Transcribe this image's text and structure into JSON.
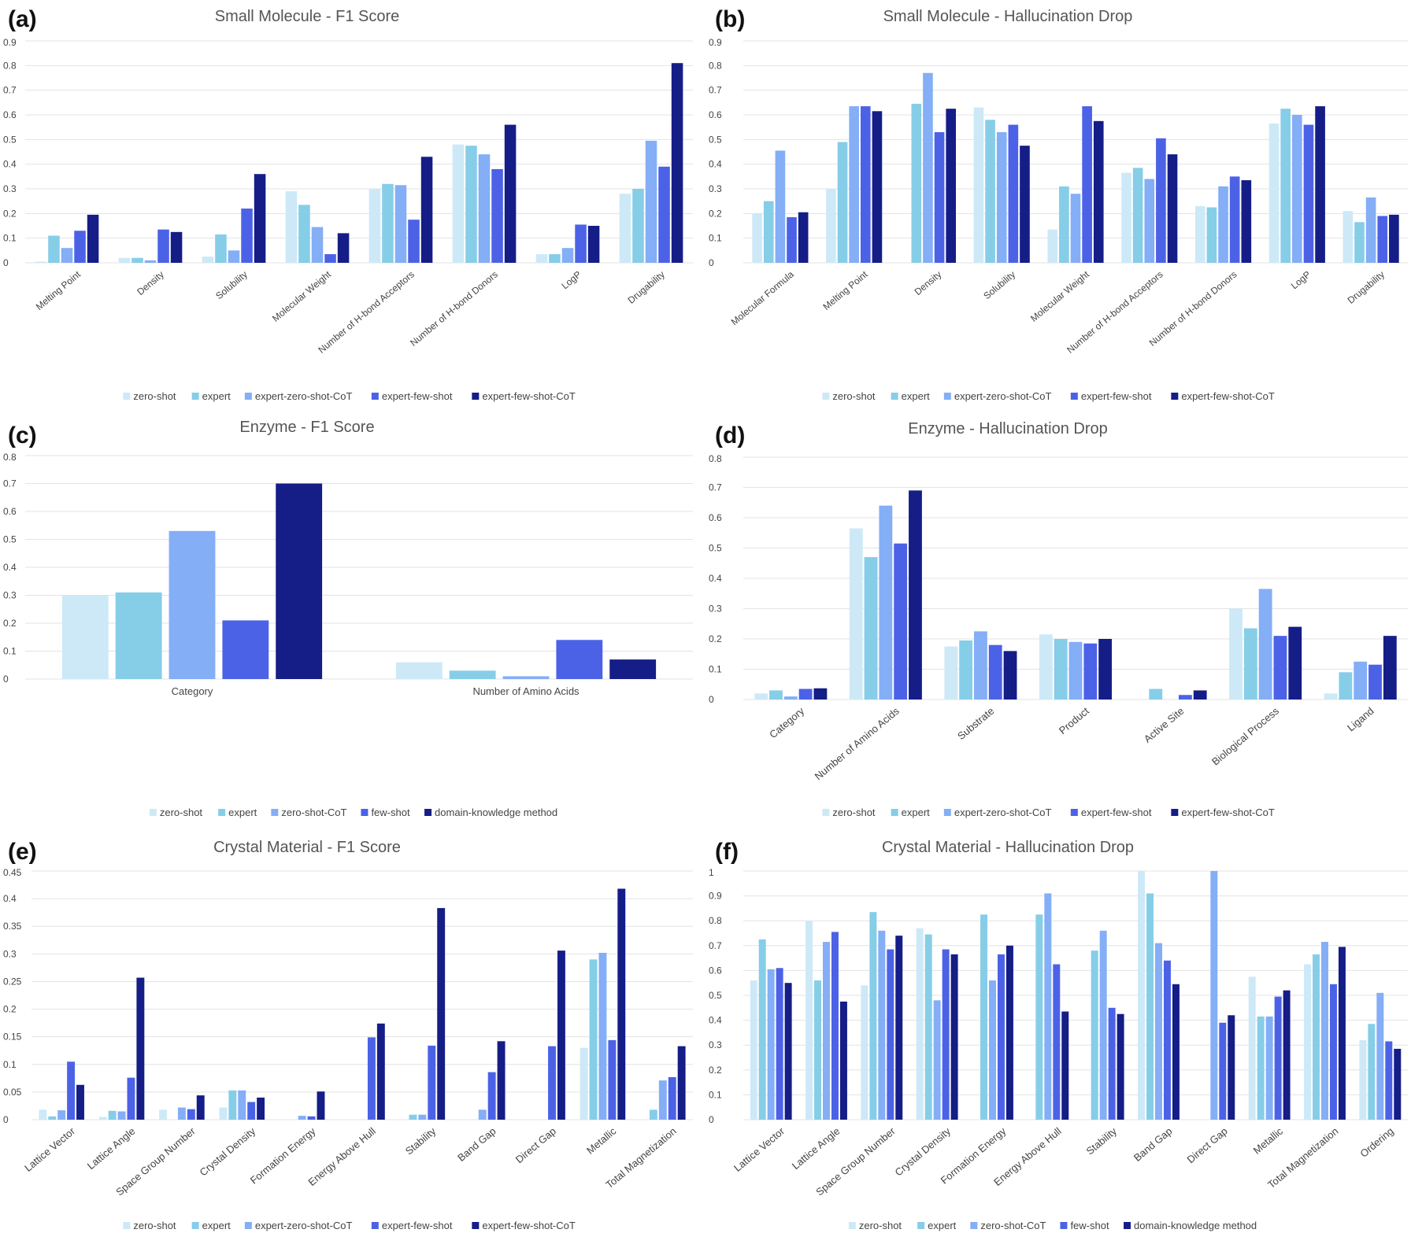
{
  "colors": {
    "s1": "#cde9f7",
    "s2": "#86cde8",
    "s3": "#84aef6",
    "s4": "#4c62e6",
    "s5": "#151d87"
  },
  "chart_data": [
    {
      "type": "bar",
      "panel_label": "(a)",
      "title": "Small Molecule - F1 Score",
      "categories": [
        "Melting Point",
        "Density",
        "Solubility",
        "Molecular Weight",
        "Number of H-bond Acceptors",
        "Number of H-bond Donors",
        "LogP",
        "Drugability"
      ],
      "ylim": [
        0,
        0.9
      ],
      "yticks": [
        "0",
        "0.1",
        "0.2",
        "0.3",
        "0.4",
        "0.5",
        "0.6",
        "0.7",
        "0.8",
        "0.9"
      ],
      "rotate_labels": true,
      "legend": "bottom",
      "series": [
        {
          "name": "zero-shot",
          "values": [
            0.005,
            0.02,
            0.025,
            0.29,
            0.3,
            0.48,
            0.035,
            0.28
          ]
        },
        {
          "name": "expert",
          "values": [
            0.11,
            0.02,
            0.115,
            0.235,
            0.32,
            0.475,
            0.035,
            0.3
          ]
        },
        {
          "name": "expert-zero-shot-CoT",
          "values": [
            0.06,
            0.01,
            0.05,
            0.145,
            0.315,
            0.44,
            0.06,
            0.495
          ]
        },
        {
          "name": "expert-few-shot",
          "values": [
            0.13,
            0.135,
            0.22,
            0.035,
            0.175,
            0.38,
            0.155,
            0.39
          ]
        },
        {
          "name": "expert-few-shot-CoT",
          "values": [
            0.195,
            0.125,
            0.36,
            0.12,
            0.43,
            0.56,
            0.15,
            0.81
          ]
        }
      ]
    },
    {
      "type": "bar",
      "panel_label": "(b)",
      "title": "Small Molecule - Hallucination Drop",
      "categories": [
        "Molecular Formula",
        "Melting Point",
        "Density",
        "Solubility",
        "Molecular Weight",
        "Number of H-bond Acceptors",
        "Number of H-bond Donors",
        "LogP",
        "Drugability"
      ],
      "ylim": [
        0,
        0.9
      ],
      "yticks": [
        "0",
        "0.1",
        "0.2",
        "0.3",
        "0.4",
        "0.5",
        "0.6",
        "0.7",
        "0.8",
        "0.9"
      ],
      "rotate_labels": true,
      "legend": "bottom",
      "series": [
        {
          "name": "zero-shot",
          "values": [
            0.2,
            0.3,
            0.0,
            0.63,
            0.135,
            0.365,
            0.23,
            0.565,
            0.21
          ]
        },
        {
          "name": "expert",
          "values": [
            0.25,
            0.49,
            0.645,
            0.58,
            0.31,
            0.385,
            0.225,
            0.625,
            0.165
          ]
        },
        {
          "name": "expert-zero-shot-CoT",
          "values": [
            0.455,
            0.635,
            0.77,
            0.53,
            0.28,
            0.34,
            0.31,
            0.6,
            0.265
          ]
        },
        {
          "name": "expert-few-shot",
          "values": [
            0.185,
            0.635,
            0.53,
            0.56,
            0.635,
            0.505,
            0.35,
            0.56,
            0.19
          ]
        },
        {
          "name": "expert-few-shot-CoT",
          "values": [
            0.205,
            0.615,
            0.625,
            0.475,
            0.575,
            0.44,
            0.335,
            0.635,
            0.195
          ]
        }
      ]
    },
    {
      "type": "bar",
      "panel_label": "(c)",
      "title": "Enzyme - F1 Score",
      "categories": [
        "Category",
        "Number of Amino Acids"
      ],
      "ylim": [
        0,
        0.8
      ],
      "yticks": [
        "0",
        "0.1",
        "0.2",
        "0.3",
        "0.4",
        "0.5",
        "0.6",
        "0.7",
        "0.8"
      ],
      "rotate_labels": false,
      "legend": "bottom",
      "series": [
        {
          "name": "zero-shot",
          "values": [
            0.3,
            0.06
          ]
        },
        {
          "name": "expert",
          "values": [
            0.31,
            0.03
          ]
        },
        {
          "name": "zero-shot-CoT",
          "values": [
            0.53,
            0.01
          ]
        },
        {
          "name": "few-shot",
          "values": [
            0.21,
            0.14
          ]
        },
        {
          "name": "domain-knowledge method",
          "values": [
            0.7,
            0.07
          ]
        }
      ]
    },
    {
      "type": "bar",
      "panel_label": "(d)",
      "title": "Enzyme - Hallucination Drop",
      "categories": [
        "Category",
        "Number of Amino Acids",
        "Substrate",
        "Product",
        "Active Site",
        "Biological Process",
        "Ligand"
      ],
      "ylim": [
        0,
        0.8
      ],
      "yticks": [
        "0",
        "0.1",
        "0.2",
        "0.3",
        "0.4",
        "0.5",
        "0.6",
        "0.7",
        "0.8"
      ],
      "rotate_labels": true,
      "legend": "bottom",
      "series": [
        {
          "name": "zero-shot",
          "values": [
            0.02,
            0.565,
            0.175,
            0.215,
            0.0,
            0.3,
            0.02
          ]
        },
        {
          "name": "expert",
          "values": [
            0.03,
            0.47,
            0.195,
            0.2,
            0.035,
            0.235,
            0.09
          ]
        },
        {
          "name": "expert-zero-shot-CoT",
          "values": [
            0.01,
            0.64,
            0.225,
            0.19,
            0.0,
            0.365,
            0.125
          ]
        },
        {
          "name": "expert-few-shot",
          "values": [
            0.035,
            0.515,
            0.18,
            0.185,
            0.015,
            0.21,
            0.115
          ]
        },
        {
          "name": "expert-few-shot-CoT",
          "values": [
            0.037,
            0.69,
            0.16,
            0.2,
            0.03,
            0.24,
            0.21
          ]
        }
      ]
    },
    {
      "type": "bar",
      "panel_label": "(e)",
      "title": "Crystal Material - F1 Score",
      "categories": [
        "Lattice Vector",
        "Lattice Angle",
        "Space Group Number",
        "Crystal Density",
        "Formation Energy",
        "Energy Above Hull",
        "Stability",
        "Band Gap",
        "Direct Gap",
        "Metallic",
        "Total Magnetization"
      ],
      "ylim": [
        0,
        0.45
      ],
      "yticks": [
        "0",
        "0.05",
        "0.1",
        "0.15",
        "0.2",
        "0.25",
        "0.3",
        "0.35",
        "0.4",
        "0.45"
      ],
      "rotate_labels": true,
      "legend": "bottom",
      "series": [
        {
          "name": "zero-shot",
          "values": [
            0.018,
            0.005,
            0.018,
            0.022,
            0.0,
            0.0,
            0.0,
            0.0,
            0.0,
            0.13,
            0.0
          ]
        },
        {
          "name": "expert",
          "values": [
            0.006,
            0.016,
            0.0,
            0.053,
            0.0,
            0.0,
            0.009,
            0.0,
            0.0,
            0.29,
            0.018
          ]
        },
        {
          "name": "expert-zero-shot-CoT",
          "values": [
            0.017,
            0.015,
            0.022,
            0.053,
            0.007,
            0.0,
            0.009,
            0.018,
            0.0,
            0.302,
            0.071
          ]
        },
        {
          "name": "expert-few-shot",
          "values": [
            0.105,
            0.076,
            0.019,
            0.032,
            0.006,
            0.149,
            0.134,
            0.086,
            0.133,
            0.144,
            0.077
          ]
        },
        {
          "name": "expert-few-shot-CoT",
          "values": [
            0.063,
            0.257,
            0.044,
            0.04,
            0.051,
            0.174,
            0.383,
            0.142,
            0.306,
            0.418,
            0.133
          ]
        }
      ]
    },
    {
      "type": "bar",
      "panel_label": "(f)",
      "title": "Crystal Material - Hallucination Drop",
      "categories": [
        "Lattice Vector",
        "Lattice Angle",
        "Space Group Number",
        "Crystal Density",
        "Formation Energy",
        "Energy Above Hull",
        "Stability",
        "Band Gap",
        "Direct Gap",
        "Metallic",
        "Total Magnetization",
        "Ordering"
      ],
      "ylim": [
        0,
        1
      ],
      "yticks": [
        "0",
        "0.1",
        "0.2",
        "0.3",
        "0.4",
        "0.5",
        "0.6",
        "0.7",
        "0.8",
        "0.9",
        "1"
      ],
      "rotate_labels": true,
      "legend": "bottom",
      "series": [
        {
          "name": "zero-shot",
          "values": [
            0.56,
            0.8,
            0.54,
            0.77,
            0.0,
            0.0,
            0.0,
            1.0,
            0.0,
            0.575,
            0.625,
            0.32
          ]
        },
        {
          "name": "expert",
          "values": [
            0.725,
            0.56,
            0.835,
            0.745,
            0.825,
            0.825,
            0.68,
            0.91,
            0.0,
            0.415,
            0.665,
            0.385
          ]
        },
        {
          "name": "zero-shot-CoT",
          "values": [
            0.605,
            0.715,
            0.76,
            0.48,
            0.56,
            0.91,
            0.76,
            0.71,
            1.0,
            0.415,
            0.715,
            0.51
          ]
        },
        {
          "name": "few-shot",
          "values": [
            0.61,
            0.755,
            0.685,
            0.685,
            0.665,
            0.625,
            0.45,
            0.64,
            0.39,
            0.495,
            0.545,
            0.315
          ]
        },
        {
          "name": "domain-knowledge method",
          "values": [
            0.55,
            0.475,
            0.74,
            0.665,
            0.7,
            0.435,
            0.425,
            0.545,
            0.42,
            0.52,
            0.695,
            0.285
          ]
        }
      ]
    }
  ]
}
